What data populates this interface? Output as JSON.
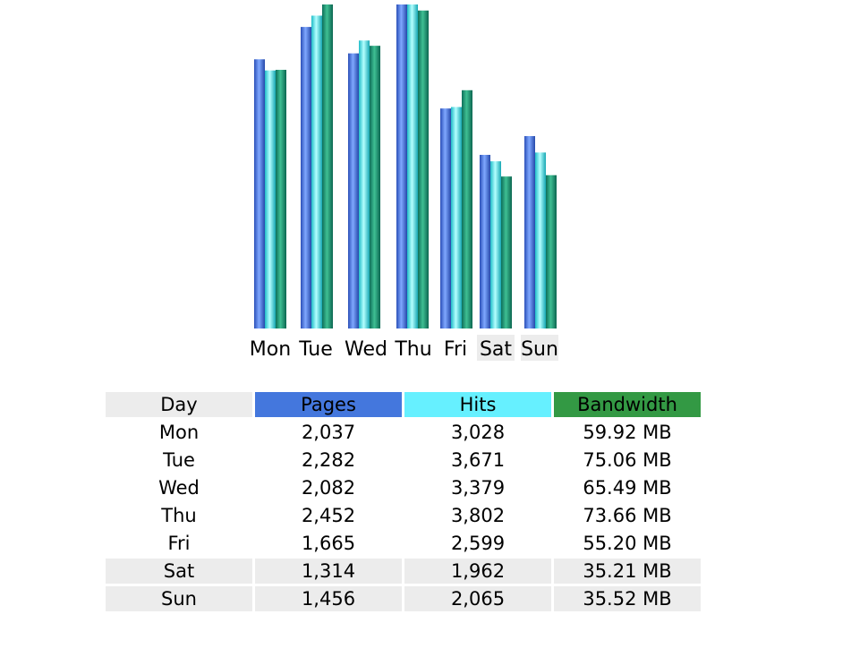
{
  "colors": {
    "pages": "#4477dd",
    "hits": "#66f0ff",
    "bandwidth": "#339944",
    "weekend_bg": "#ececec"
  },
  "chart_data": {
    "type": "bar",
    "categories": [
      "Mon",
      "Tue",
      "Wed",
      "Thu",
      "Fri",
      "Sat",
      "Sun"
    ],
    "weekend": [
      false,
      false,
      false,
      false,
      false,
      true,
      true
    ],
    "series": [
      {
        "name": "Pages",
        "values": [
          2037,
          2282,
          2082,
          2452,
          1665,
          1314,
          1456
        ],
        "color": "#4477dd"
      },
      {
        "name": "Hits",
        "values": [
          3028,
          3671,
          3379,
          3802,
          2599,
          1962,
          2065
        ],
        "color": "#66f0ff"
      },
      {
        "name": "Bandwidth",
        "values": [
          59.92,
          75.06,
          65.49,
          73.66,
          55.2,
          35.21,
          35.52
        ],
        "unit": "MB",
        "color": "#339944"
      }
    ],
    "grid": false,
    "legend": "none"
  },
  "table": {
    "headers": {
      "day": "Day",
      "pages": "Pages",
      "hits": "Hits",
      "bandwidth": "Bandwidth"
    },
    "rows": [
      {
        "day": "Mon",
        "pages": "2,037",
        "hits": "3,028",
        "bandwidth": "59.92 MB",
        "weekend": false
      },
      {
        "day": "Tue",
        "pages": "2,282",
        "hits": "3,671",
        "bandwidth": "75.06 MB",
        "weekend": false
      },
      {
        "day": "Wed",
        "pages": "2,082",
        "hits": "3,379",
        "bandwidth": "65.49 MB",
        "weekend": false
      },
      {
        "day": "Thu",
        "pages": "2,452",
        "hits": "3,802",
        "bandwidth": "73.66 MB",
        "weekend": false
      },
      {
        "day": "Fri",
        "pages": "1,665",
        "hits": "2,599",
        "bandwidth": "55.20 MB",
        "weekend": false
      },
      {
        "day": "Sat",
        "pages": "1,314",
        "hits": "1,962",
        "bandwidth": "35.21 MB",
        "weekend": true
      },
      {
        "day": "Sun",
        "pages": "1,456",
        "hits": "2,065",
        "bandwidth": "35.52 MB",
        "weekend": true
      }
    ]
  }
}
